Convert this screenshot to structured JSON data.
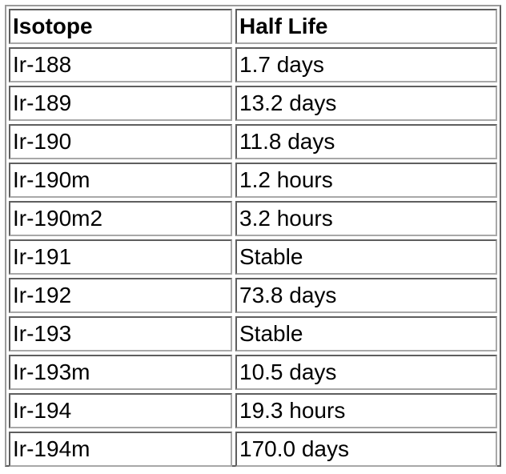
{
  "table": {
    "headers": [
      "Isotope",
      "Half Life"
    ],
    "rows": [
      [
        "Ir-188",
        "1.7 days"
      ],
      [
        "Ir-189",
        "13.2 days"
      ],
      [
        "Ir-190",
        "11.8 days"
      ],
      [
        "Ir-190m",
        "1.2 hours"
      ],
      [
        "Ir-190m2",
        "3.2 hours"
      ],
      [
        "Ir-191",
        "Stable"
      ],
      [
        "Ir-192",
        "73.8 days"
      ],
      [
        "Ir-193",
        "Stable"
      ],
      [
        "Ir-193m",
        "10.5 days"
      ],
      [
        "Ir-194",
        "19.3 hours"
      ],
      [
        "Ir-194m",
        "170.0 days"
      ]
    ]
  }
}
